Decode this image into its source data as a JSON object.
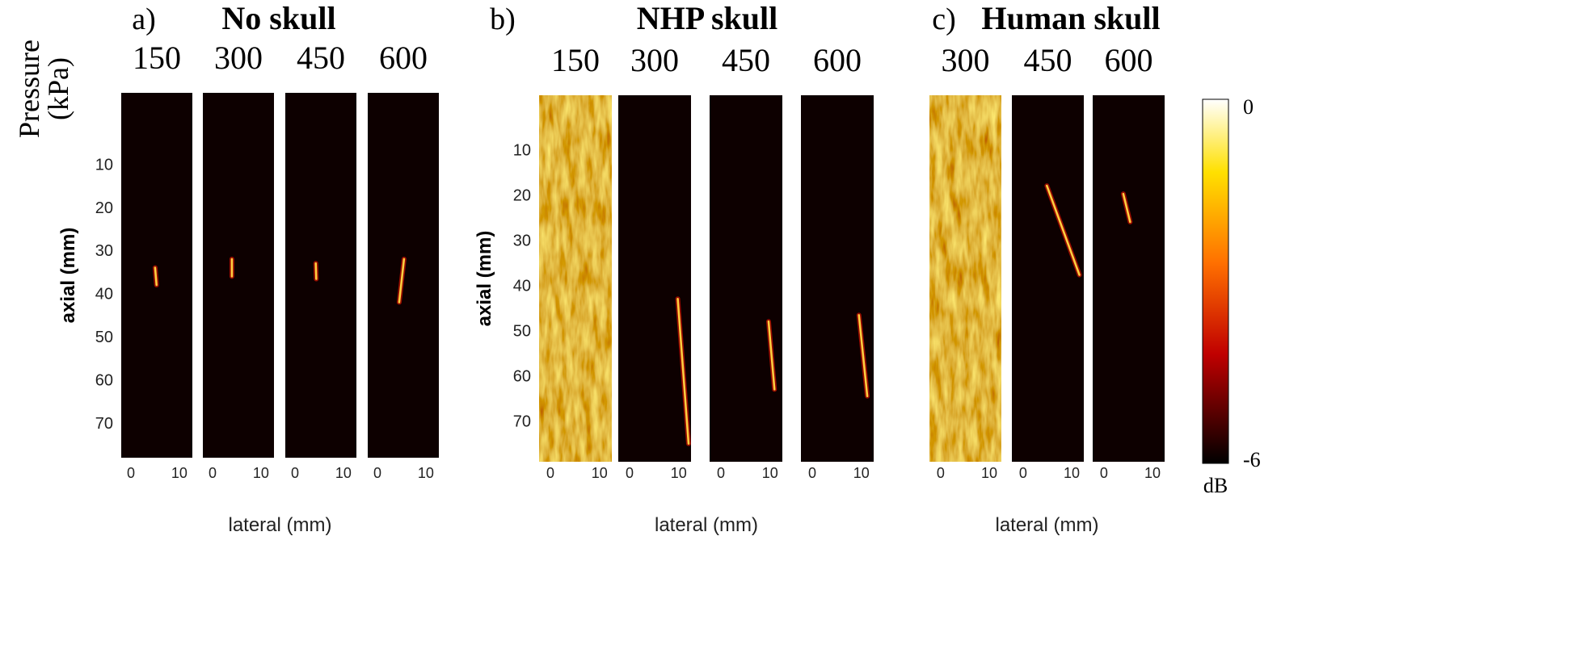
{
  "pressure_label": {
    "line1": "Pressure",
    "line2": "(kPa)"
  },
  "colorbar": {
    "lim": [
      -6,
      0
    ],
    "ticks": [
      0,
      -6
    ],
    "label": "dB"
  },
  "chart_data": [
    {
      "type": "heatmap",
      "tag": "a)",
      "title": "No skull",
      "ylabel": "axial (mm)",
      "xlabel": "lateral (mm)",
      "xlim": [
        -2,
        12.7
      ],
      "ylim": [
        -6.5,
        78
      ],
      "xticks": [
        0,
        10
      ],
      "yticks": [
        10,
        20,
        30,
        40,
        50,
        60,
        70
      ],
      "images": [
        {
          "pressure": 150,
          "background": "dark",
          "focus": {
            "x": [
              5,
              5.3
            ],
            "y": [
              34,
              38
            ]
          }
        },
        {
          "pressure": 300,
          "background": "dark",
          "focus": {
            "x": [
              4,
              4
            ],
            "y": [
              32,
              36
            ]
          }
        },
        {
          "pressure": 450,
          "background": "dark",
          "focus": {
            "x": [
              4.3,
              4.4
            ],
            "y": [
              33,
              36.6
            ]
          }
        },
        {
          "pressure": 600,
          "background": "dark",
          "focus": {
            "x": [
              5.5,
              4.5
            ],
            "y": [
              32,
              42
            ]
          }
        }
      ]
    },
    {
      "type": "heatmap",
      "tag": "b)",
      "title": "NHP skull",
      "ylabel": "axial (mm)",
      "xlabel": "lateral (mm)",
      "xlim": [
        -2.3,
        12.5
      ],
      "ylim": [
        -2,
        79
      ],
      "xticks": [
        0,
        10
      ],
      "yticks": [
        10,
        20,
        30,
        40,
        50,
        60,
        70
      ],
      "images": [
        {
          "pressure": 150,
          "background": "noise"
        },
        {
          "pressure": 300,
          "background": "dark",
          "focus": {
            "x": [
              9.8,
              12
            ],
            "y": [
              43,
              75
            ]
          }
        },
        {
          "pressure": 450,
          "background": "dark",
          "focus": {
            "x": [
              9.7,
              10.9
            ],
            "y": [
              48,
              63
            ]
          }
        },
        {
          "pressure": 600,
          "background": "dark",
          "focus": {
            "x": [
              9.5,
              11.2
            ],
            "y": [
              46.6,
              64.5
            ]
          }
        }
      ]
    },
    {
      "type": "heatmap",
      "tag": "c)",
      "title": "Human skull",
      "xlabel": "lateral (mm)",
      "xlim": [
        -2.3,
        12.5
      ],
      "ylim": [
        -2,
        79
      ],
      "xticks": [
        0,
        10
      ],
      "images": [
        {
          "pressure": 300,
          "background": "noise"
        },
        {
          "pressure": 450,
          "background": "dark",
          "focus": {
            "x": [
              4.9,
              11.6
            ],
            "y": [
              18,
              37.7
            ]
          }
        },
        {
          "pressure": 600,
          "background": "dark",
          "focus": {
            "x": [
              4,
              5.4
            ],
            "y": [
              19.8,
              26
            ]
          }
        }
      ]
    }
  ]
}
